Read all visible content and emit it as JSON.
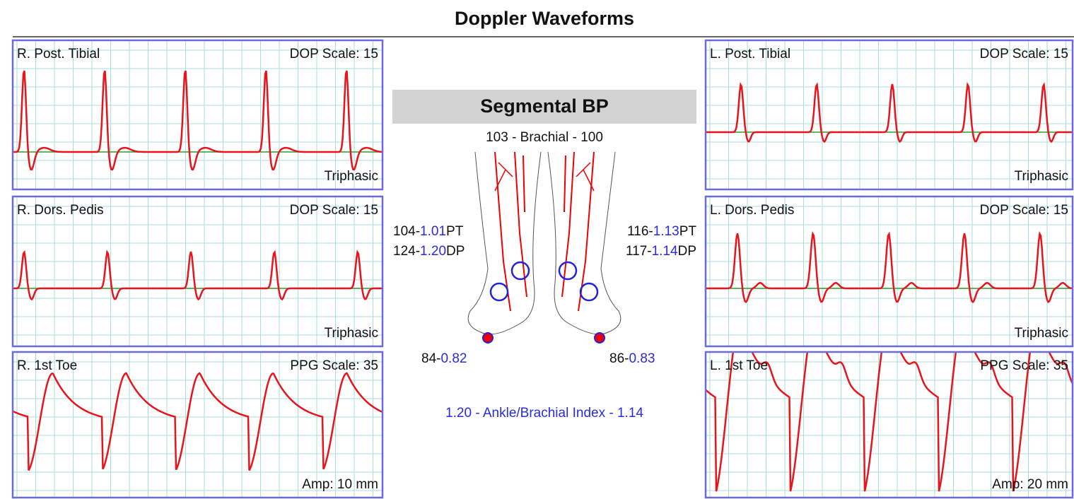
{
  "header": {
    "title": "Doppler Waveforms"
  },
  "panels": [
    {
      "label": "R. Post. Tibial",
      "scale": "DOP Scale: 15",
      "note": "Triphasic"
    },
    {
      "label": "R. Dors. Pedis",
      "scale": "DOP Scale: 15",
      "note": "Triphasic"
    },
    {
      "label": "R. 1st Toe",
      "scale": "PPG Scale: 35",
      "note": "Amp: 10 mm"
    },
    {
      "label": "L. Post. Tibial",
      "scale": "DOP Scale: 15",
      "note": "Triphasic"
    },
    {
      "label": "L. Dors. Pedis",
      "scale": "DOP Scale: 15",
      "note": "Triphasic"
    },
    {
      "label": "L. 1st Toe",
      "scale": "PPG Scale: 35",
      "note": "Amp: 20 mm"
    }
  ],
  "segmental_bp": {
    "title": "Segmental BP",
    "brachial": {
      "right": "103",
      "label": "- Brachial -",
      "left": "100"
    },
    "right_ankle": [
      {
        "pressure": "104-",
        "index": "1.01",
        "site": "PT"
      },
      {
        "pressure": "124-",
        "index": "1.20",
        "site": "DP"
      }
    ],
    "left_ankle": [
      {
        "pressure": "116-",
        "index": "1.13",
        "site": "PT"
      },
      {
        "pressure": "117-",
        "index": "1.14",
        "site": "DP"
      }
    ],
    "right_toe": {
      "pressure": "84-",
      "index": "0.82"
    },
    "left_toe": {
      "pressure": "86-",
      "index": "0.83"
    },
    "abi": {
      "right": "1.20",
      "label": "- Ankle/Brachial Index -",
      "left": "1.14"
    }
  }
}
